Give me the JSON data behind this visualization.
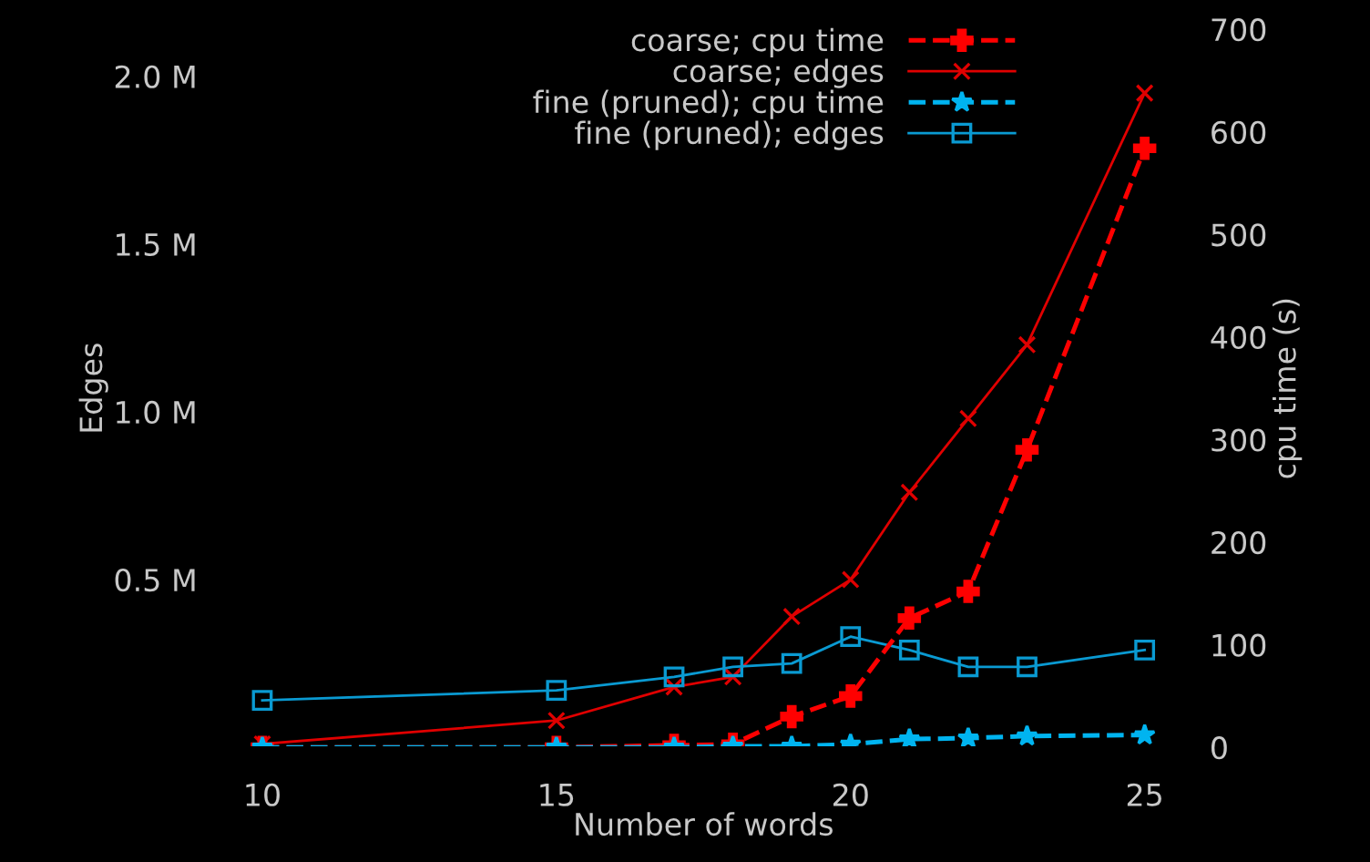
{
  "chart_data": {
    "type": "line",
    "xlabel": "Number of words",
    "ylabel": "Edges",
    "y2label": "cpu time (s)",
    "x": [
      10,
      15,
      17,
      18,
      19,
      20,
      21,
      22,
      23,
      25
    ],
    "xlim": [
      9.5,
      25.5
    ],
    "xticks": [
      10,
      15,
      20,
      25
    ],
    "ylim": [
      0,
      2.14
    ],
    "yticks": [
      {
        "value": 0.5,
        "label": "0.5 M"
      },
      {
        "value": 1.0,
        "label": "1.0 M"
      },
      {
        "value": 1.5,
        "label": "1.5 M"
      },
      {
        "value": 2.0,
        "label": "2.0 M"
      }
    ],
    "y2lim": [
      0,
      700
    ],
    "y2ticks": [
      0,
      100,
      200,
      300,
      400,
      500,
      600,
      700
    ],
    "legend": "top right",
    "grid": false,
    "series": [
      {
        "name": "coarse; cpu time",
        "color": "#ff0000",
        "axis": "y2",
        "marker": "cross",
        "line_style": "dashed",
        "values": [
          0,
          0,
          2,
          3,
          30,
          50,
          126,
          152,
          290,
          584
        ]
      },
      {
        "name": "coarse; edges",
        "color": "#e00000",
        "axis": "y",
        "marker": "x",
        "line_style": "solid",
        "values": [
          0.01,
          0.08,
          0.18,
          0.21,
          0.39,
          0.5,
          0.76,
          0.98,
          1.2,
          1.95
        ]
      },
      {
        "name": "fine (pruned); cpu time",
        "color": "#00b4f0",
        "axis": "y2",
        "marker": "star",
        "line_style": "dashed",
        "values": [
          0,
          0,
          0,
          1,
          1,
          3,
          8,
          9,
          11,
          12
        ]
      },
      {
        "name": "fine (pruned); edges",
        "color": "#0a9ad2",
        "axis": "y",
        "marker": "square",
        "line_style": "solid",
        "values": [
          0.14,
          0.17,
          0.21,
          0.24,
          0.25,
          0.33,
          0.29,
          0.24,
          0.24,
          0.29
        ]
      }
    ]
  }
}
